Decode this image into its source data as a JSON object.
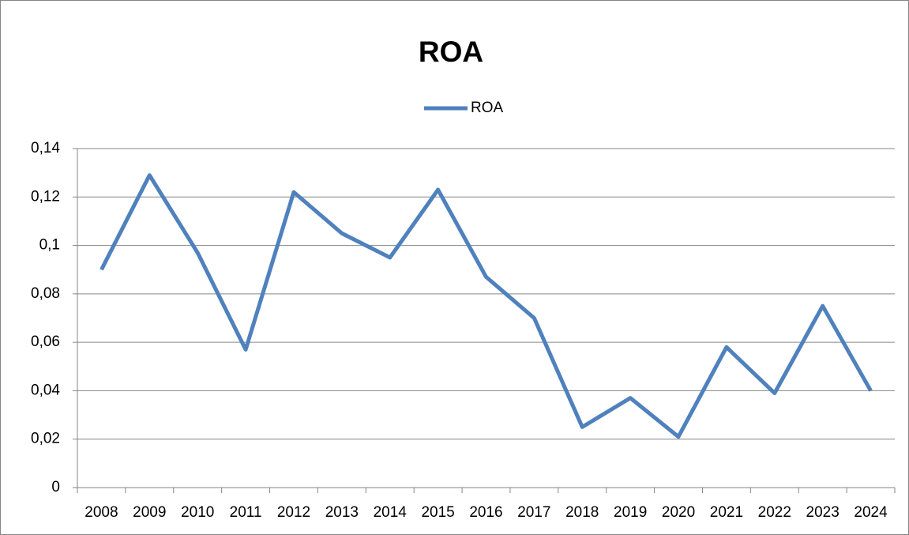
{
  "chart_data": {
    "type": "line",
    "title": "ROA",
    "categories": [
      "2008",
      "2009",
      "2010",
      "2011",
      "2012",
      "2013",
      "2014",
      "2015",
      "2016",
      "2017",
      "2018",
      "2019",
      "2020",
      "2021",
      "2022",
      "2023",
      "2024"
    ],
    "series": [
      {
        "name": "ROA",
        "color": "#4f81bd",
        "values": [
          0.09,
          0.129,
          0.097,
          0.057,
          0.122,
          0.105,
          0.095,
          0.123,
          0.087,
          0.07,
          0.025,
          0.037,
          0.021,
          0.058,
          0.039,
          0.075,
          0.04
        ]
      }
    ],
    "ylim": [
      0,
      0.14
    ],
    "yticks": [
      0,
      {
        "value": 0.02,
        "label": "0,02"
      },
      {
        "value": 0.04,
        "label": "0,04"
      },
      {
        "value": 0.06,
        "label": "0,06"
      },
      {
        "value": 0.08,
        "label": "0,08"
      },
      {
        "value": 0.1,
        "label": "0,1"
      },
      {
        "value": 0.12,
        "label": "0,12"
      },
      {
        "value": 0.14,
        "label": "0,14"
      }
    ],
    "grid": true,
    "legend": "top"
  }
}
